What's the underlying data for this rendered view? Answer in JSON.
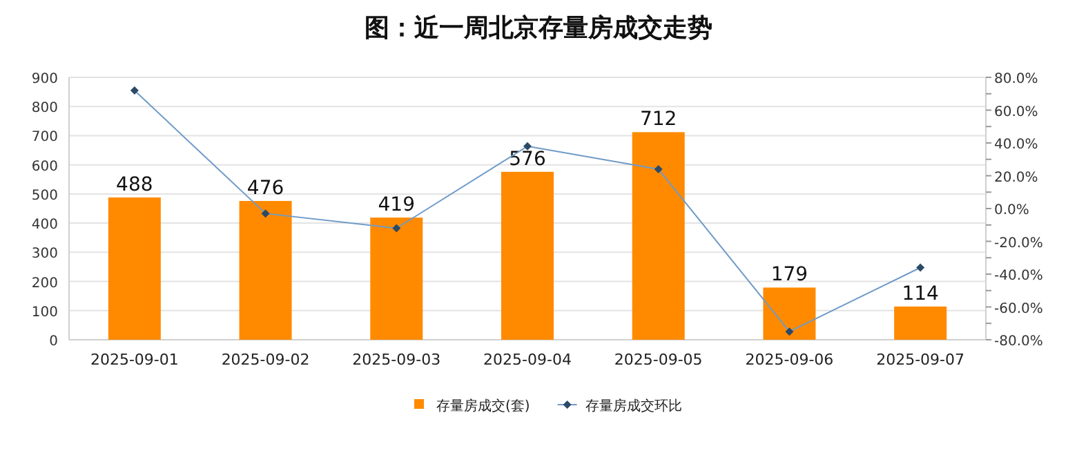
{
  "chart_data": {
    "type": "bar",
    "title": "图：近一周北京存量房成交走势",
    "categories": [
      "2025-09-01",
      "2025-09-02",
      "2025-09-03",
      "2025-09-04",
      "2025-09-05",
      "2025-09-06",
      "2025-09-07"
    ],
    "series": [
      {
        "name": "存量房成交(套)",
        "color": "#ff8a00",
        "values": [
          488,
          476,
          419,
          576,
          712,
          179,
          114
        ],
        "value_labels": [
          "488",
          "476",
          "419",
          "576",
          "712",
          "179",
          "114"
        ]
      },
      {
        "name": "存量房成交环比",
        "type": "line",
        "axis": "y2",
        "color": "#6f9bc8",
        "marker": "diamond",
        "values": [
          72,
          -3,
          -12,
          38,
          24,
          -75,
          -36
        ]
      }
    ],
    "ylim": [
      0,
      900
    ],
    "yticks": [
      0,
      100,
      200,
      300,
      400,
      500,
      600,
      700,
      800,
      900
    ],
    "y2lim": [
      -80,
      80
    ],
    "y2ticks": [
      {
        "value": -80,
        "label": "-80.0%"
      },
      {
        "value": -70,
        "label": null
      },
      {
        "value": -60,
        "label": "-60.0%"
      },
      {
        "value": -50,
        "label": null
      },
      {
        "value": -40,
        "label": "-40.0%"
      },
      {
        "value": -30,
        "label": null
      },
      {
        "value": -20,
        "label": "-20.0%"
      },
      {
        "value": -10,
        "label": null
      },
      {
        "value": 0,
        "label": "0.0%"
      },
      {
        "value": 10,
        "label": null
      },
      {
        "value": 20,
        "label": "20.0%"
      },
      {
        "value": 30,
        "label": null
      },
      {
        "value": 40,
        "label": "40.0%"
      },
      {
        "value": 50,
        "label": null
      },
      {
        "value": 60,
        "label": "60.0%"
      },
      {
        "value": 70,
        "label": null
      },
      {
        "value": 80,
        "label": "80.0%"
      }
    ],
    "grid": "y",
    "legend": "bottom"
  }
}
